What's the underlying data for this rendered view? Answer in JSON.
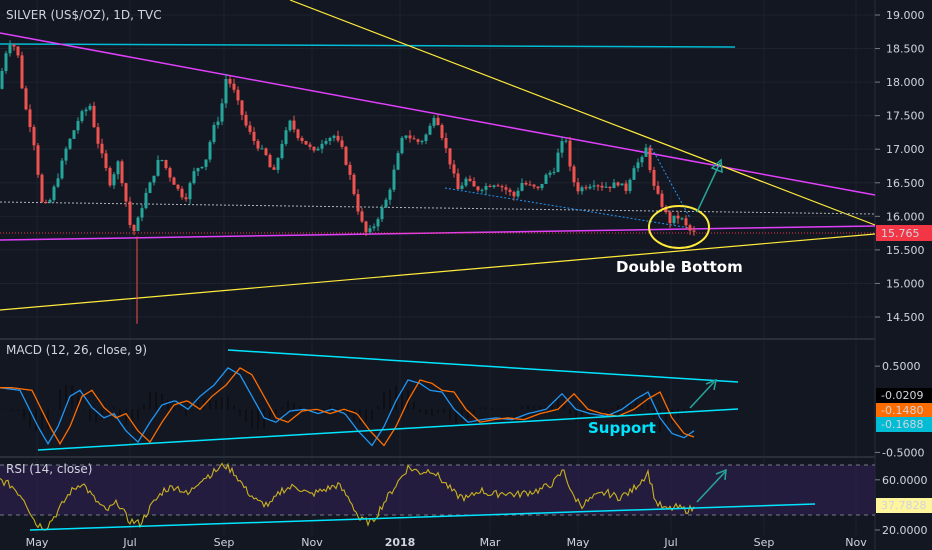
{
  "chart_data": {
    "type": "candlestick",
    "title": "SILVER (US$/OZ), 1D, TVC",
    "x_ticks": [
      "May",
      "Jul",
      "Sep",
      "Nov",
      "2018",
      "Mar",
      "May",
      "Jul",
      "Sep",
      "Nov"
    ],
    "price": {
      "y_ticks": [
        "19.000",
        "18.500",
        "18.000",
        "17.500",
        "17.000",
        "16.500",
        "16.000",
        "15.500",
        "15.000",
        "14.500"
      ],
      "ylim": [
        14.3,
        19.15
      ],
      "current": "15.765",
      "anchors": [
        [
          0,
          17.9
        ],
        [
          3,
          18.3
        ],
        [
          9,
          18.6
        ],
        [
          17,
          18.5
        ],
        [
          24,
          17.7
        ],
        [
          33,
          17.2
        ],
        [
          42,
          16.2
        ],
        [
          48,
          16.15
        ],
        [
          58,
          16.6
        ],
        [
          66,
          17.0
        ],
        [
          80,
          17.5
        ],
        [
          90,
          17.65
        ],
        [
          96,
          17.2
        ],
        [
          102,
          16.9
        ],
        [
          110,
          16.5
        ],
        [
          118,
          16.8
        ],
        [
          124,
          16.4
        ],
        [
          132,
          15.7
        ],
        [
          138,
          15.95
        ],
        [
          145,
          16.3
        ],
        [
          152,
          16.55
        ],
        [
          160,
          16.9
        ],
        [
          170,
          16.6
        ],
        [
          178,
          16.4
        ],
        [
          185,
          16.25
        ],
        [
          195,
          16.7
        ],
        [
          205,
          16.8
        ],
        [
          213,
          17.3
        ],
        [
          220,
          17.5
        ],
        [
          226,
          18.05
        ],
        [
          232,
          17.95
        ],
        [
          240,
          17.6
        ],
        [
          246,
          17.35
        ],
        [
          255,
          17.1
        ],
        [
          266,
          16.9
        ],
        [
          273,
          16.6
        ],
        [
          282,
          17.1
        ],
        [
          290,
          17.4
        ],
        [
          298,
          17.2
        ],
        [
          305,
          17.1
        ],
        [
          314,
          16.95
        ],
        [
          324,
          17.15
        ],
        [
          334,
          17.2
        ],
        [
          342,
          17.0
        ],
        [
          350,
          16.6
        ],
        [
          358,
          16.1
        ],
        [
          365,
          15.75
        ],
        [
          372,
          15.8
        ],
        [
          380,
          16.05
        ],
        [
          388,
          16.3
        ],
        [
          396,
          16.8
        ],
        [
          404,
          17.25
        ],
        [
          412,
          17.15
        ],
        [
          420,
          17.1
        ],
        [
          428,
          17.25
        ],
        [
          435,
          17.55
        ],
        [
          442,
          17.2
        ],
        [
          450,
          16.8
        ],
        [
          458,
          16.4
        ],
        [
          466,
          16.55
        ],
        [
          476,
          16.4
        ],
        [
          486,
          16.45
        ],
        [
          496,
          16.5
        ],
        [
          506,
          16.4
        ],
        [
          514,
          16.3
        ],
        [
          522,
          16.5
        ],
        [
          530,
          16.45
        ],
        [
          538,
          16.4
        ],
        [
          546,
          16.6
        ],
        [
          554,
          16.7
        ],
        [
          560,
          17.05
        ],
        [
          566,
          17.15
        ],
        [
          571,
          16.6
        ],
        [
          578,
          16.4
        ],
        [
          586,
          16.45
        ],
        [
          594,
          16.5
        ],
        [
          602,
          16.45
        ],
        [
          610,
          16.45
        ],
        [
          618,
          16.5
        ],
        [
          626,
          16.4
        ],
        [
          634,
          16.75
        ],
        [
          642,
          16.85
        ],
        [
          647,
          17.05
        ],
        [
          652,
          16.5
        ],
        [
          658,
          16.3
        ],
        [
          664,
          16.1
        ],
        [
          670,
          15.92
        ],
        [
          676,
          16.0
        ],
        [
          682,
          15.95
        ],
        [
          688,
          15.8
        ],
        [
          694,
          15.75
        ]
      ]
    },
    "macd": {
      "title": "MACD (12, 26, close, 9)",
      "y_ticks": [
        "0.5000",
        "-0.5000"
      ],
      "ylim": [
        -0.53,
        0.78
      ],
      "values": [
        "-0.0209",
        "-0.1480",
        "-0.1688"
      ],
      "anchors": [
        [
          0,
          0.25
        ],
        [
          20,
          0.22
        ],
        [
          38,
          -0.2
        ],
        [
          48,
          -0.4
        ],
        [
          58,
          -0.2
        ],
        [
          70,
          0.15
        ],
        [
          80,
          0.22
        ],
        [
          92,
          0.02
        ],
        [
          104,
          -0.1
        ],
        [
          114,
          -0.05
        ],
        [
          126,
          -0.25
        ],
        [
          138,
          -0.38
        ],
        [
          150,
          -0.15
        ],
        [
          162,
          0.05
        ],
        [
          175,
          0.1
        ],
        [
          188,
          0.0
        ],
        [
          200,
          0.15
        ],
        [
          214,
          0.28
        ],
        [
          228,
          0.48
        ],
        [
          240,
          0.4
        ],
        [
          252,
          0.15
        ],
        [
          264,
          -0.1
        ],
        [
          276,
          -0.15
        ],
        [
          290,
          -0.02
        ],
        [
          305,
          0.0
        ],
        [
          318,
          -0.05
        ],
        [
          332,
          0.0
        ],
        [
          345,
          -0.05
        ],
        [
          358,
          -0.25
        ],
        [
          372,
          -0.42
        ],
        [
          384,
          -0.2
        ],
        [
          396,
          0.1
        ],
        [
          408,
          0.34
        ],
        [
          420,
          0.3
        ],
        [
          430,
          0.22
        ],
        [
          442,
          0.2
        ],
        [
          454,
          0.0
        ],
        [
          468,
          -0.15
        ],
        [
          482,
          -0.12
        ],
        [
          496,
          -0.1
        ],
        [
          512,
          -0.12
        ],
        [
          528,
          -0.05
        ],
        [
          546,
          0.0
        ],
        [
          562,
          0.18
        ],
        [
          576,
          0.0
        ],
        [
          590,
          -0.05
        ],
        [
          606,
          -0.08
        ],
        [
          622,
          0.0
        ],
        [
          636,
          0.12
        ],
        [
          648,
          0.2
        ],
        [
          660,
          -0.1
        ],
        [
          672,
          -0.28
        ],
        [
          684,
          -0.33
        ],
        [
          694,
          -0.25
        ]
      ]
    },
    "rsi": {
      "title": "RSI (14, close)",
      "y_ticks": [
        "60.0000",
        "20.0000"
      ],
      "ylim": [
        16,
        75
      ],
      "current": "37.7828",
      "anchors": [
        [
          0,
          60
        ],
        [
          12,
          55
        ],
        [
          24,
          45
        ],
        [
          36,
          25
        ],
        [
          46,
          22
        ],
        [
          58,
          35
        ],
        [
          70,
          50
        ],
        [
          82,
          58
        ],
        [
          94,
          45
        ],
        [
          106,
          35
        ],
        [
          118,
          42
        ],
        [
          128,
          28
        ],
        [
          140,
          25
        ],
        [
          152,
          40
        ],
        [
          164,
          52
        ],
        [
          176,
          55
        ],
        [
          188,
          48
        ],
        [
          200,
          60
        ],
        [
          212,
          65
        ],
        [
          224,
          72
        ],
        [
          234,
          66
        ],
        [
          246,
          52
        ],
        [
          258,
          42
        ],
        [
          270,
          40
        ],
        [
          282,
          52
        ],
        [
          296,
          55
        ],
        [
          310,
          48
        ],
        [
          324,
          52
        ],
        [
          338,
          56
        ],
        [
          350,
          44
        ],
        [
          360,
          28
        ],
        [
          372,
          26
        ],
        [
          384,
          42
        ],
        [
          396,
          56
        ],
        [
          408,
          70
        ],
        [
          420,
          66
        ],
        [
          432,
          68
        ],
        [
          444,
          58
        ],
        [
          456,
          48
        ],
        [
          468,
          45
        ],
        [
          480,
          52
        ],
        [
          492,
          48
        ],
        [
          504,
          50
        ],
        [
          516,
          48
        ],
        [
          528,
          50
        ],
        [
          540,
          52
        ],
        [
          554,
          58
        ],
        [
          564,
          68
        ],
        [
          572,
          48
        ],
        [
          582,
          40
        ],
        [
          594,
          46
        ],
        [
          606,
          50
        ],
        [
          618,
          46
        ],
        [
          630,
          50
        ],
        [
          642,
          60
        ],
        [
          648,
          66
        ],
        [
          656,
          42
        ],
        [
          666,
          36
        ],
        [
          676,
          38
        ],
        [
          686,
          36
        ],
        [
          694,
          37
        ]
      ]
    },
    "annotations": [
      "Double Bottom",
      "Support"
    ]
  }
}
